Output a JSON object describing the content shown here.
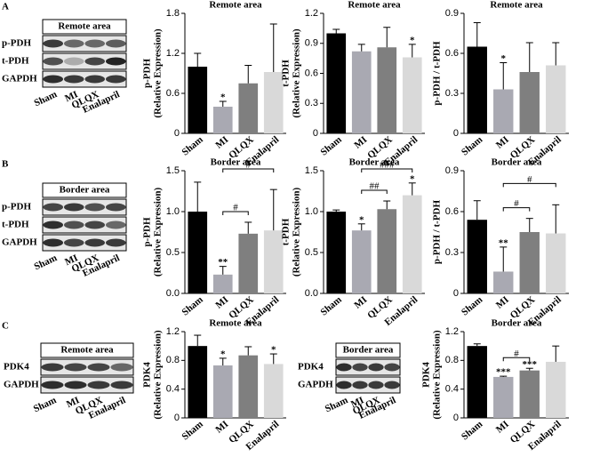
{
  "panel_labels": [
    "A",
    "B",
    "C"
  ],
  "blots": [
    {
      "title": "Remote area",
      "rows": [
        "p-PDH",
        "t-PDH",
        "GAPDH"
      ],
      "lanes": [
        "Sham",
        "MI",
        "QLQX",
        "Enalapril"
      ]
    },
    {
      "title": "Border area",
      "rows": [
        "p-PDH",
        "t-PDH",
        "GAPDH"
      ],
      "lanes": [
        "Sham",
        "MI",
        "QLQX",
        "Enalapril"
      ]
    },
    {
      "title": "Remote area",
      "rows": [
        "PDK4",
        "GAPDH"
      ],
      "lanes": [
        "Sham",
        "MI",
        "QLQX",
        "Enalapril"
      ]
    },
    {
      "title": "Border area",
      "rows": [
        "PDK4",
        "GAPDH"
      ],
      "lanes": [
        "Sham",
        "MI",
        "QLQX",
        "Enalapril"
      ]
    }
  ],
  "chart_data": [
    {
      "type": "bar",
      "title": "Remote area",
      "ylabel": [
        "p-PDH",
        "(Relative Expression)"
      ],
      "categories": [
        "Sham",
        "MI",
        "QLQX",
        "Enalapril"
      ],
      "colors": [
        "#000000",
        "#a9a9b2",
        "#7f7f7f",
        "#d9d9d9"
      ],
      "values": [
        1.0,
        0.4,
        0.75,
        0.92
      ],
      "errors": [
        0.2,
        0.08,
        0.27,
        0.72
      ],
      "marks": [
        null,
        "*",
        null,
        null
      ],
      "ylim": [
        0,
        1.8
      ],
      "yticks": [
        0,
        0.6,
        1.2,
        1.8
      ]
    },
    {
      "type": "bar",
      "title": "Remote area",
      "ylabel": [
        "t-PDH",
        "(Relative Expression)"
      ],
      "categories": [
        "Sham",
        "MI",
        "QLQX",
        "Enalapril"
      ],
      "colors": [
        "#000000",
        "#a9a9b2",
        "#7f7f7f",
        "#d9d9d9"
      ],
      "values": [
        1.0,
        0.82,
        0.86,
        0.76
      ],
      "errors": [
        0.04,
        0.07,
        0.2,
        0.13
      ],
      "marks": [
        null,
        null,
        null,
        "*"
      ],
      "ylim": [
        0,
        1.2
      ],
      "yticks": [
        0,
        0.3,
        0.6,
        0.9,
        1.2
      ]
    },
    {
      "type": "bar",
      "title": "Remote area",
      "ylabel": [
        "p-PDH / t-PDH"
      ],
      "categories": [
        "Sham",
        "MI",
        "QLQX",
        "Enalapril"
      ],
      "colors": [
        "#000000",
        "#a9a9b2",
        "#7f7f7f",
        "#d9d9d9"
      ],
      "values": [
        0.65,
        0.33,
        0.46,
        0.51
      ],
      "errors": [
        0.18,
        0.2,
        0.22,
        0.17
      ],
      "marks": [
        null,
        "*",
        null,
        null
      ],
      "ylim": [
        0,
        0.9
      ],
      "yticks": [
        0,
        0.3,
        0.6,
        0.9
      ]
    },
    {
      "type": "bar",
      "title": "Border area",
      "ylabel": [
        "p-PDH",
        "(Relative Expression)"
      ],
      "categories": [
        "Sham",
        "MI",
        "QLQX",
        "Enalapril"
      ],
      "colors": [
        "#000000",
        "#a9a9b2",
        "#7f7f7f",
        "#d9d9d9"
      ],
      "values": [
        1.0,
        0.23,
        0.73,
        0.77
      ],
      "errors": [
        0.36,
        0.1,
        0.14,
        0.5
      ],
      "marks": [
        null,
        "**",
        null,
        null
      ],
      "brackets": [
        {
          "between": [
            "MI",
            "QLQX"
          ],
          "label": "#"
        },
        {
          "between": [
            "MI",
            "Enalapril"
          ],
          "label": "#"
        }
      ],
      "ylim": [
        0,
        1.5
      ],
      "yticks": [
        {
          "value": 0,
          "label": "0.0"
        },
        0.5,
        {
          "value": 1,
          "label": "1.0"
        },
        1.5
      ]
    },
    {
      "type": "bar",
      "title": "Border area",
      "ylabel": [
        "t-PDH",
        "(Relative Expression)"
      ],
      "categories": [
        "Sham",
        "MI",
        "QLQX",
        "Enalapril"
      ],
      "colors": [
        "#000000",
        "#a9a9b2",
        "#7f7f7f",
        "#d9d9d9"
      ],
      "values": [
        1.0,
        0.77,
        1.03,
        1.2
      ],
      "errors": [
        0.02,
        0.08,
        0.1,
        0.15
      ],
      "marks": [
        null,
        "*",
        null,
        "*"
      ],
      "brackets": [
        {
          "between": [
            "MI",
            "QLQX"
          ],
          "label": "##"
        },
        {
          "between": [
            "MI",
            "Enalapril"
          ],
          "label": "###"
        }
      ],
      "ylim": [
        0,
        1.5
      ],
      "yticks": [
        {
          "value": 0,
          "label": "0.0"
        },
        0.5,
        {
          "value": 1,
          "label": "1.0"
        },
        1.5
      ]
    },
    {
      "type": "bar",
      "title": "Border area",
      "ylabel": [
        "p-PDH / t-PDH"
      ],
      "categories": [
        "Sham",
        "MI",
        "QLQX",
        "Enalapril"
      ],
      "colors": [
        "#000000",
        "#a9a9b2",
        "#7f7f7f",
        "#d9d9d9"
      ],
      "values": [
        0.54,
        0.16,
        0.45,
        0.44
      ],
      "errors": [
        0.14,
        0.18,
        0.1,
        0.21
      ],
      "marks": [
        null,
        "**",
        null,
        null
      ],
      "brackets": [
        {
          "between": [
            "MI",
            "QLQX"
          ],
          "label": "#"
        },
        {
          "between": [
            "MI",
            "Enalapril"
          ],
          "label": "#"
        }
      ],
      "ylim": [
        0,
        0.9
      ],
      "yticks": [
        0,
        0.3,
        0.6,
        0.9
      ]
    },
    {
      "type": "bar",
      "title": "Remote area",
      "ylabel": [
        "PDK4",
        "(Relative Expression)"
      ],
      "categories": [
        "Sham",
        "MI",
        "QLQX",
        "Enalapril"
      ],
      "colors": [
        "#000000",
        "#a9a9b2",
        "#7f7f7f",
        "#d9d9d9"
      ],
      "values": [
        1.0,
        0.73,
        0.87,
        0.75
      ],
      "errors": [
        0.15,
        0.1,
        0.12,
        0.14
      ],
      "marks": [
        null,
        "*",
        null,
        "*"
      ],
      "ylim": [
        0,
        1.2
      ],
      "yticks": [
        0,
        0.4,
        0.8,
        1.2
      ]
    },
    {
      "type": "bar",
      "title": "Border area",
      "ylabel": [
        "PDK4",
        "(Relative Expression)"
      ],
      "categories": [
        "Sham",
        "MI",
        "QLQX",
        "Enalapril"
      ],
      "colors": [
        "#000000",
        "#a9a9b2",
        "#7f7f7f",
        "#d9d9d9"
      ],
      "values": [
        1.0,
        0.57,
        0.66,
        0.78
      ],
      "errors": [
        0.03,
        0.01,
        0.03,
        0.22
      ],
      "marks": [
        null,
        "***",
        "***",
        null
      ],
      "brackets": [
        {
          "between": [
            "MI",
            "QLQX"
          ],
          "label": "#"
        }
      ],
      "ylim": [
        0,
        1.2
      ],
      "yticks": [
        0,
        0.4,
        0.8,
        1.2
      ]
    }
  ]
}
